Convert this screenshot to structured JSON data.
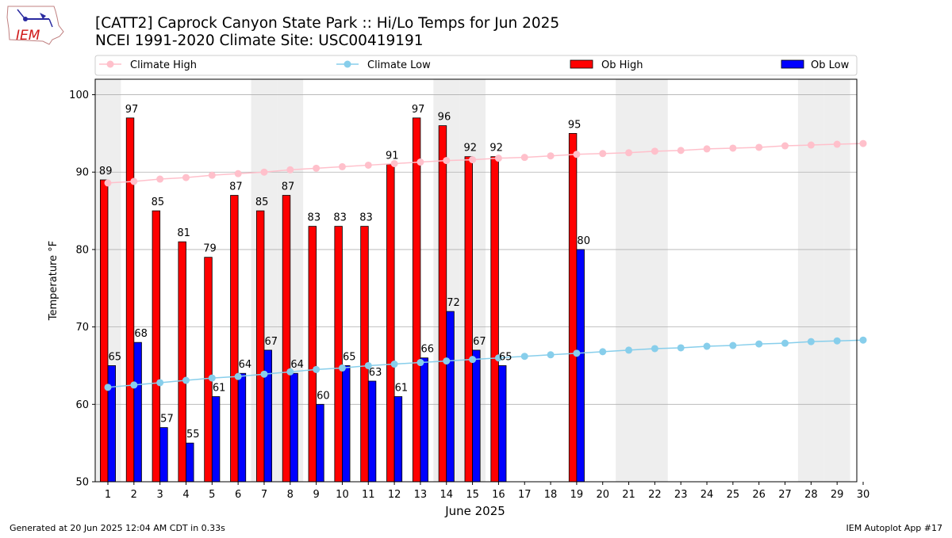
{
  "logo": {
    "text": "IEM"
  },
  "header": {
    "title": "[CATT2] Caprock Canyon State Park :: Hi/Lo Temps for Jun 2025",
    "subtitle": "NCEI 1991-2020 Climate Site: USC00419191"
  },
  "footer": {
    "generated": "Generated at 20 Jun 2025 12:04 AM CDT in 0.33s",
    "app": "IEM Autoplot App #17"
  },
  "legend": {
    "placement": "top",
    "items": [
      "Climate High",
      "Climate Low",
      "Ob High",
      "Ob Low"
    ]
  },
  "colors": {
    "climate_high": "#ffc0cb",
    "climate_low": "#87ceeb",
    "ob_high": "#ff0000",
    "ob_low": "#0000ff",
    "weekend_shade": "#eeeeee",
    "grid": "#b0b0b0"
  },
  "chart_data": {
    "type": "bar",
    "xlabel": "June 2025",
    "ylabel": "Temperature °F",
    "ylim": [
      50,
      102
    ],
    "yticks": [
      50,
      60,
      70,
      80,
      90,
      100
    ],
    "grid": "horizontal",
    "categories": [
      "1",
      "2",
      "3",
      "4",
      "5",
      "6",
      "7",
      "8",
      "9",
      "10",
      "11",
      "12",
      "13",
      "14",
      "15",
      "16",
      "17",
      "18",
      "19",
      "20",
      "21",
      "22",
      "23",
      "24",
      "25",
      "26",
      "27",
      "28",
      "29",
      "30"
    ],
    "weekend_days": [
      1,
      7,
      8,
      14,
      15,
      21,
      22,
      28,
      29
    ],
    "series": [
      {
        "name": "Ob High",
        "kind": "bar",
        "values": [
          89,
          97,
          85,
          81,
          79,
          87,
          85,
          87,
          83,
          83,
          83,
          91,
          97,
          96,
          92,
          92,
          null,
          null,
          95,
          null,
          null,
          null,
          null,
          null,
          null,
          null,
          null,
          null,
          null,
          null
        ]
      },
      {
        "name": "Ob Low",
        "kind": "bar",
        "values": [
          65,
          68,
          57,
          55,
          61,
          64,
          67,
          64,
          60,
          65,
          63,
          61,
          66,
          72,
          67,
          65,
          null,
          null,
          80,
          null,
          null,
          null,
          null,
          null,
          null,
          null,
          null,
          null,
          null,
          null
        ]
      },
      {
        "name": "Climate High",
        "kind": "line",
        "values": [
          88.6,
          88.8,
          89.1,
          89.3,
          89.6,
          89.8,
          90.0,
          90.3,
          90.5,
          90.7,
          90.9,
          91.1,
          91.3,
          91.5,
          91.6,
          91.8,
          91.9,
          92.1,
          92.3,
          92.4,
          92.5,
          92.7,
          92.8,
          93.0,
          93.1,
          93.2,
          93.4,
          93.5,
          93.6,
          93.7
        ]
      },
      {
        "name": "Climate Low",
        "kind": "line",
        "values": [
          62.2,
          62.5,
          62.8,
          63.1,
          63.4,
          63.6,
          63.9,
          64.2,
          64.5,
          64.7,
          65.0,
          65.2,
          65.4,
          65.6,
          65.8,
          66.0,
          66.2,
          66.4,
          66.6,
          66.8,
          67.0,
          67.2,
          67.3,
          67.5,
          67.6,
          67.8,
          67.9,
          68.1,
          68.2,
          68.3
        ]
      }
    ]
  }
}
